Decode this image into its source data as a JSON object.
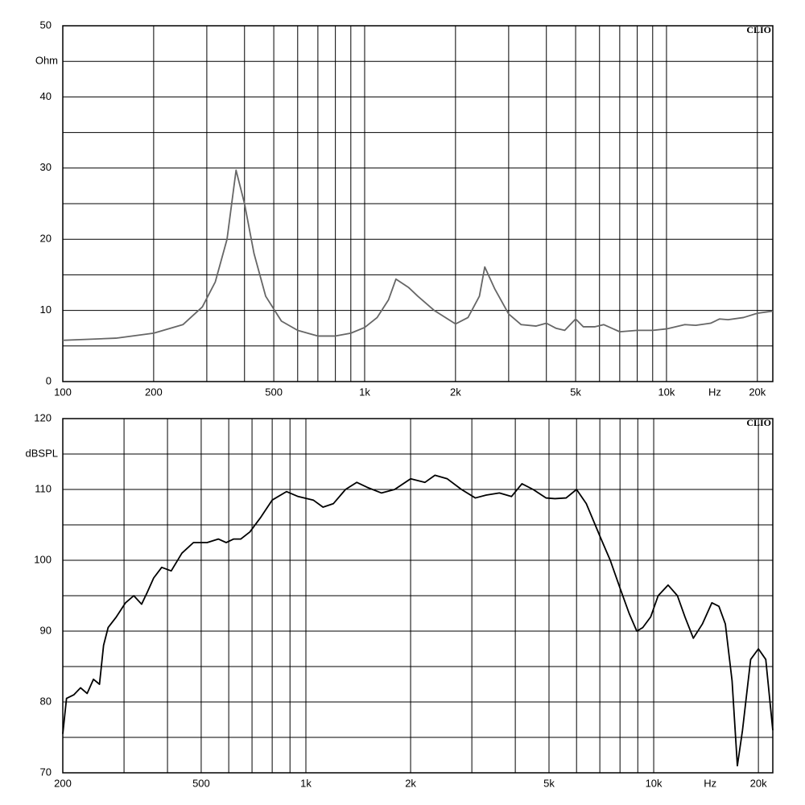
{
  "chart_data": [
    {
      "type": "line",
      "ylabel": "Ohm",
      "xlabel": "Hz",
      "brand": "CLIO",
      "xscale": "log",
      "grid": true,
      "color": "#666666",
      "xlim": [
        100,
        22500
      ],
      "ylim": [
        0,
        50
      ],
      "xticks": [
        100,
        200,
        500,
        {
          "value": 1000,
          "label": "1k"
        },
        {
          "value": 2000,
          "label": "2k"
        },
        {
          "value": 5000,
          "label": "5k"
        },
        {
          "value": 10000,
          "label": "10k"
        },
        {
          "value": 20000,
          "label": "20k"
        }
      ],
      "yticks": [
        0,
        10,
        20,
        30,
        40,
        50
      ],
      "xgrid": [
        300,
        400,
        600,
        700,
        800,
        900,
        3000,
        4000,
        6000,
        7000,
        8000,
        9000
      ],
      "ygrid": [
        5,
        15,
        25,
        35,
        45
      ],
      "x": [
        100,
        150,
        200,
        250,
        290,
        320,
        350,
        375,
        400,
        430,
        470,
        530,
        600,
        700,
        800,
        900,
        1000,
        1100,
        1200,
        1270,
        1400,
        1500,
        1700,
        2000,
        2200,
        2400,
        2500,
        2700,
        3000,
        3300,
        3700,
        4000,
        4300,
        4600,
        5000,
        5300,
        5800,
        6200,
        7000,
        8000,
        9000,
        10000,
        11500,
        12500,
        14000,
        15000,
        16000,
        18000,
        20000,
        22500
      ],
      "values": [
        5.8,
        6.1,
        6.8,
        8.0,
        10.5,
        14,
        20,
        29.7,
        25,
        18,
        12,
        8.5,
        7.2,
        6.4,
        6.4,
        6.8,
        7.6,
        9,
        11.5,
        14.4,
        13.2,
        12,
        10,
        8.1,
        9,
        12,
        16.1,
        13,
        9.5,
        8,
        7.8,
        8.2,
        7.5,
        7.2,
        8.8,
        7.7,
        7.7,
        8.0,
        7.0,
        7.2,
        7.2,
        7.4,
        8.0,
        7.9,
        8.2,
        8.8,
        8.7,
        9.0,
        9.6,
        9.9
      ]
    },
    {
      "type": "line",
      "ylabel": "dBSPL",
      "xlabel": "Hz",
      "brand": "CLIO",
      "xscale": "log",
      "grid": true,
      "color": "#000000",
      "xlim": [
        200,
        22000
      ],
      "ylim": [
        70,
        120
      ],
      "xticks": [
        200,
        500,
        {
          "value": 1000,
          "label": "1k"
        },
        {
          "value": 2000,
          "label": "2k"
        },
        {
          "value": 5000,
          "label": "5k"
        },
        {
          "value": 10000,
          "label": "10k"
        },
        {
          "value": 20000,
          "label": "20k"
        }
      ],
      "yticks": [
        70,
        80,
        90,
        100,
        110,
        120
      ],
      "xgrid": [
        300,
        400,
        600,
        700,
        800,
        900,
        3000,
        4000,
        6000,
        7000,
        8000,
        9000
      ],
      "ygrid": [
        75,
        85,
        95,
        105,
        115
      ],
      "x": [
        200,
        205,
        215,
        225,
        235,
        245,
        255,
        262,
        270,
        285,
        303,
        320,
        337,
        350,
        365,
        385,
        410,
        440,
        475,
        520,
        560,
        590,
        620,
        650,
        690,
        740,
        800,
        880,
        950,
        1050,
        1120,
        1200,
        1300,
        1400,
        1500,
        1650,
        1800,
        2000,
        2200,
        2350,
        2550,
        2800,
        3070,
        3300,
        3600,
        3900,
        4180,
        4500,
        4900,
        5200,
        5600,
        6000,
        6400,
        7060,
        7500,
        8010,
        8500,
        8940,
        9300,
        9800,
        10300,
        11000,
        11700,
        12300,
        13000,
        13800,
        14700,
        15400,
        16070,
        16800,
        17400,
        18000,
        19000,
        20000,
        21000,
        22000
      ],
      "values": [
        75.5,
        80.5,
        81,
        82,
        81.2,
        83.2,
        82.5,
        88,
        90.5,
        92,
        94,
        95,
        93.8,
        95.5,
        97.5,
        99,
        98.5,
        101,
        102.5,
        102.5,
        103,
        102.5,
        103,
        103,
        104,
        106,
        108.5,
        109.7,
        109,
        108.5,
        107.5,
        108,
        110,
        111,
        110.3,
        109.5,
        110,
        111.5,
        111,
        112,
        111.5,
        110,
        108.8,
        109.2,
        109.5,
        109,
        110.8,
        110,
        108.8,
        108.7,
        108.8,
        110,
        108,
        103,
        100,
        96,
        92.5,
        90,
        90.5,
        92,
        95,
        96.5,
        95,
        92,
        89,
        91,
        94,
        93.5,
        91,
        83,
        71,
        76,
        86,
        87.5,
        86,
        76
      ]
    }
  ]
}
